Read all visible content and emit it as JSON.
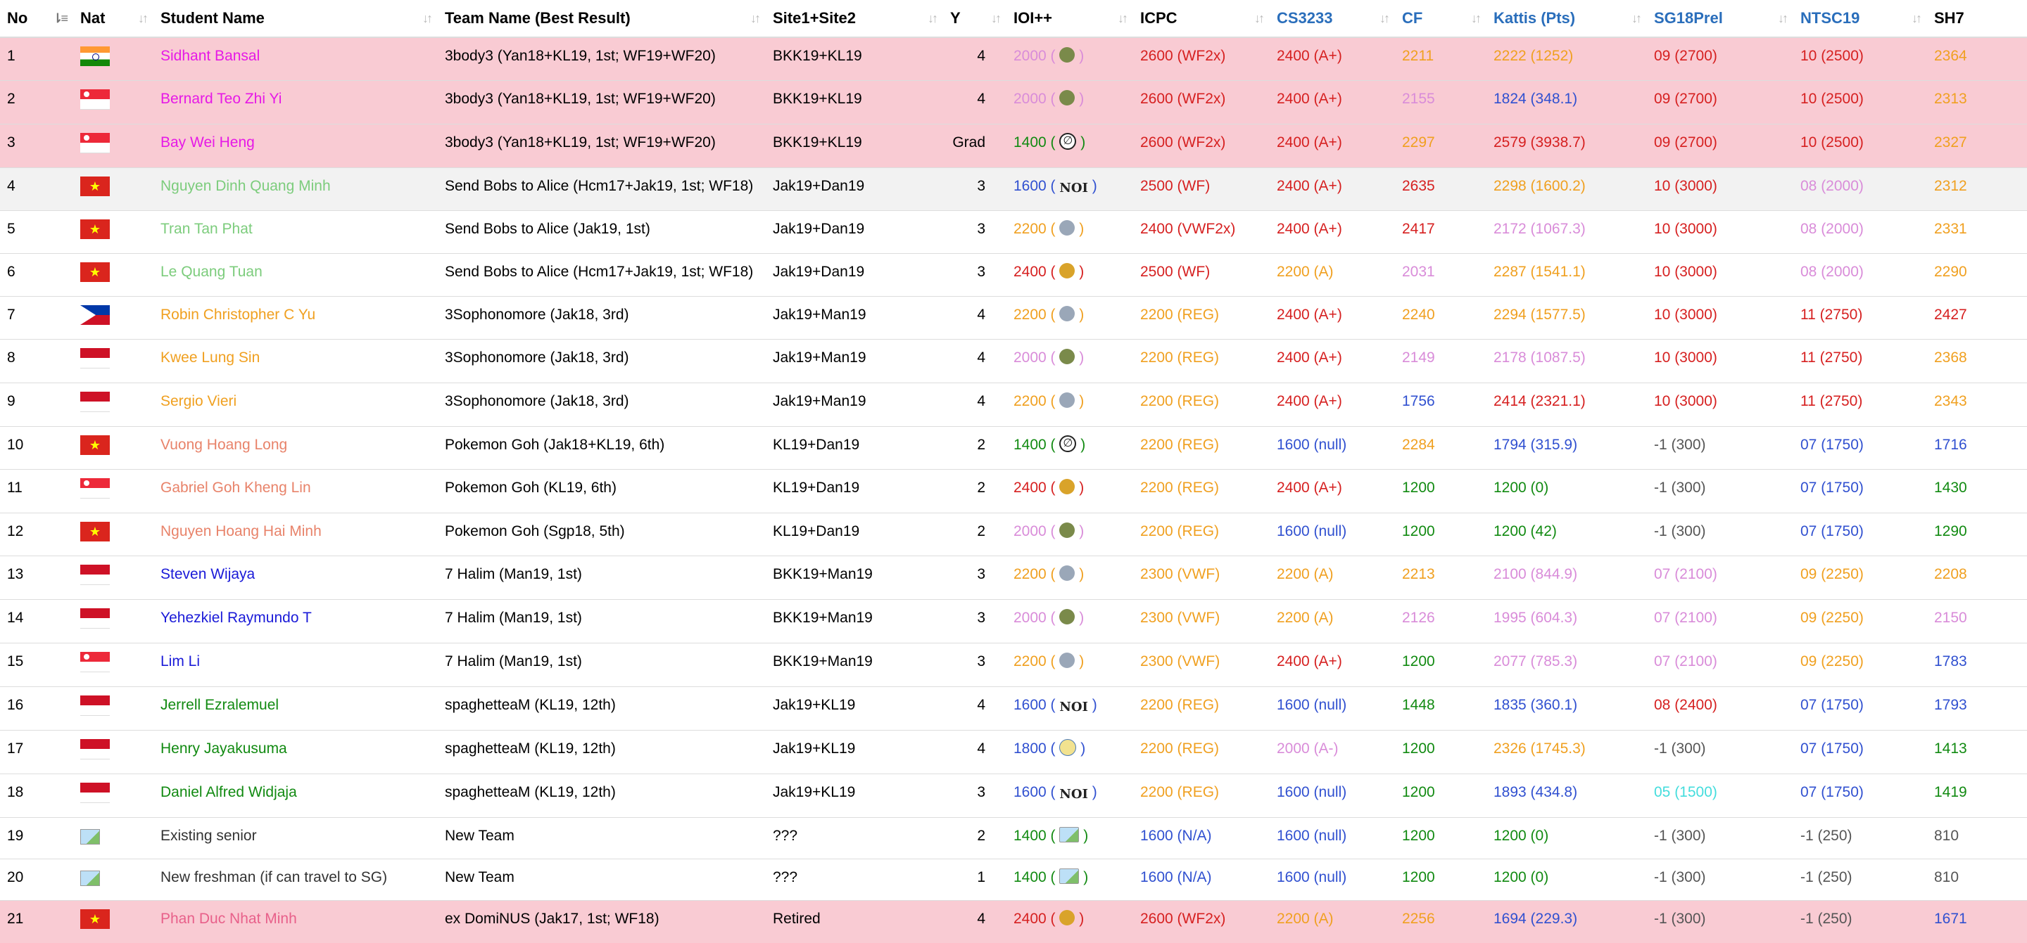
{
  "headers": {
    "no": "No",
    "nat": "Nat",
    "name": "Student Name",
    "team": "Team Name (Best Result)",
    "site": "Site1+Site2",
    "y": "Y",
    "ioi": "IOI++",
    "icpc": "ICPC",
    "cs3233": "CS3233",
    "cf": "CF",
    "kattis": "Kattis (Pts)",
    "sg18": "SG18Prel",
    "ntsc": "NTSC19",
    "sh7": "SH7"
  },
  "header_colors": {
    "cs3233": "#2a6ebb",
    "cf": "#2a6ebb",
    "kattis": "#2a6ebb",
    "sg18": "#2a6ebb",
    "ntsc": "#2a6ebb"
  },
  "rows": [
    {
      "no": "1",
      "flag": "in",
      "flag_icon": "india-flag-icon",
      "name": "Sidhant Bansal",
      "name_color": "#e619e6",
      "team": "3body3 (Yan18+KL19, 1st; WF19+WF20)",
      "site": "BKK19+KL19",
      "y": "4",
      "ioi": "2000",
      "ioi_color": "#d98cd9",
      "medal": "bronze",
      "medal_icon": "bronze-medal-icon",
      "icpc": "2600 (WF2x)",
      "icpc_color": "#d62020",
      "cs": "2400 (A+)",
      "cs_color": "#d62020",
      "cf": "2211",
      "cf_color": "#f0a020",
      "kattis": "2222 (1252)",
      "kattis_color": "#f0a020",
      "sg18": "09 (2700)",
      "sg18_color": "#d62020",
      "ntsc": "10 (2500)",
      "ntsc_color": "#d62020",
      "sh7": "2364",
      "sh7_color": "#f0a020",
      "style": "pink"
    },
    {
      "no": "2",
      "flag": "sg",
      "flag_icon": "singapore-flag-icon",
      "name": "Bernard Teo Zhi Yi",
      "name_color": "#e619e6",
      "team": "3body3 (Yan18+KL19, 1st; WF19+WF20)",
      "site": "BKK19+KL19",
      "y": "4",
      "ioi": "2000",
      "ioi_color": "#d98cd9",
      "medal": "bronze",
      "medal_icon": "bronze-medal-icon",
      "icpc": "2600 (WF2x)",
      "icpc_color": "#d62020",
      "cs": "2400 (A+)",
      "cs_color": "#d62020",
      "cf": "2155",
      "cf_color": "#d98cd9",
      "kattis": "1824 (348.1)",
      "kattis_color": "#3050d0",
      "sg18": "09 (2700)",
      "sg18_color": "#d62020",
      "ntsc": "10 (2500)",
      "ntsc_color": "#d62020",
      "sh7": "2313",
      "sh7_color": "#f0a020",
      "style": "pink"
    },
    {
      "no": "3",
      "flag": "sg",
      "flag_icon": "singapore-flag-icon",
      "name": "Bay Wei Heng",
      "name_color": "#e619e6",
      "team": "3body3 (Yan18+KL19, 1st; WF19+WF20)",
      "site": "BKK19+KL19",
      "y": "Grad",
      "ioi": "1400",
      "ioi_color": "#118a11",
      "medal": "none",
      "medal_icon": "no-medal-icon",
      "icpc": "2600 (WF2x)",
      "icpc_color": "#d62020",
      "cs": "2400 (A+)",
      "cs_color": "#d62020",
      "cf": "2297",
      "cf_color": "#f0a020",
      "kattis": "2579 (3938.7)",
      "kattis_color": "#d62020",
      "sg18": "09 (2700)",
      "sg18_color": "#d62020",
      "ntsc": "10 (2500)",
      "ntsc_color": "#d62020",
      "sh7": "2327",
      "sh7_color": "#f0a020",
      "style": "pink"
    },
    {
      "no": "4",
      "flag": "vn",
      "flag_icon": "vietnam-flag-icon",
      "name": "Nguyen Dinh Quang Minh",
      "name_color": "#7ccc7c",
      "team": "Send Bobs to Alice (Hcm17+Jak19, 1st; WF18)",
      "site": "Jak19+Dan19",
      "y": "3",
      "ioi": "1600",
      "ioi_color": "#3050d0",
      "medal": "noi",
      "medal_icon": "noi-logo-icon",
      "icpc": "2500 (WF)",
      "icpc_color": "#d62020",
      "cs": "2400 (A+)",
      "cs_color": "#d62020",
      "cf": "2635",
      "cf_color": "#d62020",
      "kattis": "2298 (1600.2)",
      "kattis_color": "#f0a020",
      "sg18": "10 (3000)",
      "sg18_color": "#d62020",
      "ntsc": "08 (2000)",
      "ntsc_color": "#d98cd9",
      "sh7": "2312",
      "sh7_color": "#f0a020",
      "style": "grey"
    },
    {
      "no": "5",
      "flag": "vn",
      "flag_icon": "vietnam-flag-icon",
      "name": "Tran Tan Phat",
      "name_color": "#7ccc7c",
      "team": "Send Bobs to Alice (Jak19, 1st)",
      "site": "Jak19+Dan19",
      "y": "3",
      "ioi": "2200",
      "ioi_color": "#f0a020",
      "medal": "silver",
      "medal_icon": "silver-medal-icon",
      "icpc": "2400 (VWF2x)",
      "icpc_color": "#d62020",
      "cs": "2400 (A+)",
      "cs_color": "#d62020",
      "cf": "2417",
      "cf_color": "#d62020",
      "kattis": "2172 (1067.3)",
      "kattis_color": "#d98cd9",
      "sg18": "10 (3000)",
      "sg18_color": "#d62020",
      "ntsc": "08 (2000)",
      "ntsc_color": "#d98cd9",
      "sh7": "2331",
      "sh7_color": "#f0a020",
      "style": ""
    },
    {
      "no": "6",
      "flag": "vn",
      "flag_icon": "vietnam-flag-icon",
      "name": "Le Quang Tuan",
      "name_color": "#7ccc7c",
      "team": "Send Bobs to Alice (Hcm17+Jak19, 1st; WF18)",
      "site": "Jak19+Dan19",
      "y": "3",
      "ioi": "2400",
      "ioi_color": "#d62020",
      "medal": "gold",
      "medal_icon": "gold-medal-icon",
      "icpc": "2500 (WF)",
      "icpc_color": "#d62020",
      "cs": "2200 (A)",
      "cs_color": "#f0a020",
      "cf": "2031",
      "cf_color": "#d98cd9",
      "kattis": "2287 (1541.1)",
      "kattis_color": "#f0a020",
      "sg18": "10 (3000)",
      "sg18_color": "#d62020",
      "ntsc": "08 (2000)",
      "ntsc_color": "#d98cd9",
      "sh7": "2290",
      "sh7_color": "#f0a020",
      "style": ""
    },
    {
      "no": "7",
      "flag": "ph",
      "flag_icon": "philippines-flag-icon",
      "name": "Robin Christopher C Yu",
      "name_color": "#f0a020",
      "team": "3Sophonomore (Jak18, 3rd)",
      "site": "Jak19+Man19",
      "y": "4",
      "ioi": "2200",
      "ioi_color": "#f0a020",
      "medal": "silver",
      "medal_icon": "silver-medal-icon",
      "icpc": "2200 (REG)",
      "icpc_color": "#f0a020",
      "cs": "2400 (A+)",
      "cs_color": "#d62020",
      "cf": "2240",
      "cf_color": "#f0a020",
      "kattis": "2294 (1577.5)",
      "kattis_color": "#f0a020",
      "sg18": "10 (3000)",
      "sg18_color": "#d62020",
      "ntsc": "11 (2750)",
      "ntsc_color": "#d62020",
      "sh7": "2427",
      "sh7_color": "#d62020",
      "style": ""
    },
    {
      "no": "8",
      "flag": "id",
      "flag_icon": "indonesia-flag-icon",
      "name": "Kwee Lung Sin",
      "name_color": "#f0a020",
      "team": "3Sophonomore (Jak18, 3rd)",
      "site": "Jak19+Man19",
      "y": "4",
      "ioi": "2000",
      "ioi_color": "#d98cd9",
      "medal": "bronze",
      "medal_icon": "bronze-medal-icon",
      "icpc": "2200 (REG)",
      "icpc_color": "#f0a020",
      "cs": "2400 (A+)",
      "cs_color": "#d62020",
      "cf": "2149",
      "cf_color": "#d98cd9",
      "kattis": "2178 (1087.5)",
      "kattis_color": "#d98cd9",
      "sg18": "10 (3000)",
      "sg18_color": "#d62020",
      "ntsc": "11 (2750)",
      "ntsc_color": "#d62020",
      "sh7": "2368",
      "sh7_color": "#f0a020",
      "style": ""
    },
    {
      "no": "9",
      "flag": "id",
      "flag_icon": "indonesia-flag-icon",
      "name": "Sergio Vieri",
      "name_color": "#f0a020",
      "team": "3Sophonomore (Jak18, 3rd)",
      "site": "Jak19+Man19",
      "y": "4",
      "ioi": "2200",
      "ioi_color": "#f0a020",
      "medal": "silver",
      "medal_icon": "silver-medal-icon",
      "icpc": "2200 (REG)",
      "icpc_color": "#f0a020",
      "cs": "2400 (A+)",
      "cs_color": "#d62020",
      "cf": "1756",
      "cf_color": "#3050d0",
      "kattis": "2414 (2321.1)",
      "kattis_color": "#d62020",
      "sg18": "10 (3000)",
      "sg18_color": "#d62020",
      "ntsc": "11 (2750)",
      "ntsc_color": "#d62020",
      "sh7": "2343",
      "sh7_color": "#f0a020",
      "style": ""
    },
    {
      "no": "10",
      "flag": "vn",
      "flag_icon": "vietnam-flag-icon",
      "name": "Vuong Hoang Long",
      "name_color": "#e8836a",
      "team": "Pokemon Goh (Jak18+KL19, 6th)",
      "site": "KL19+Dan19",
      "y": "2",
      "ioi": "1400",
      "ioi_color": "#118a11",
      "medal": "none",
      "medal_icon": "no-medal-icon",
      "icpc": "2200 (REG)",
      "icpc_color": "#f0a020",
      "cs": "1600 (null)",
      "cs_color": "#3050d0",
      "cf": "2284",
      "cf_color": "#f0a020",
      "kattis": "1794 (315.9)",
      "kattis_color": "#3050d0",
      "sg18": "-1 (300)",
      "sg18_color": "#555555",
      "ntsc": "07 (1750)",
      "ntsc_color": "#3050d0",
      "sh7": "1716",
      "sh7_color": "#3050d0",
      "style": ""
    },
    {
      "no": "11",
      "flag": "sg",
      "flag_icon": "singapore-flag-icon",
      "name": "Gabriel Goh Kheng Lin",
      "name_color": "#e8836a",
      "team": "Pokemon Goh (KL19, 6th)",
      "site": "KL19+Dan19",
      "y": "2",
      "ioi": "2400",
      "ioi_color": "#d62020",
      "medal": "gold",
      "medal_icon": "gold-medal-icon",
      "icpc": "2200 (REG)",
      "icpc_color": "#f0a020",
      "cs": "2400 (A+)",
      "cs_color": "#d62020",
      "cf": "1200",
      "cf_color": "#118a11",
      "kattis": "1200 (0)",
      "kattis_color": "#118a11",
      "sg18": "-1 (300)",
      "sg18_color": "#555555",
      "ntsc": "07 (1750)",
      "ntsc_color": "#3050d0",
      "sh7": "1430",
      "sh7_color": "#118a11",
      "style": ""
    },
    {
      "no": "12",
      "flag": "vn",
      "flag_icon": "vietnam-flag-icon",
      "name": "Nguyen Hoang Hai Minh",
      "name_color": "#e8836a",
      "team": "Pokemon Goh (Sgp18, 5th)",
      "site": "KL19+Dan19",
      "y": "2",
      "ioi": "2000",
      "ioi_color": "#d98cd9",
      "medal": "bronze",
      "medal_icon": "bronze-medal-icon",
      "icpc": "2200 (REG)",
      "icpc_color": "#f0a020",
      "cs": "1600 (null)",
      "cs_color": "#3050d0",
      "cf": "1200",
      "cf_color": "#118a11",
      "kattis": "1200 (42)",
      "kattis_color": "#118a11",
      "sg18": "-1 (300)",
      "sg18_color": "#555555",
      "ntsc": "07 (1750)",
      "ntsc_color": "#3050d0",
      "sh7": "1290",
      "sh7_color": "#118a11",
      "style": ""
    },
    {
      "no": "13",
      "flag": "id",
      "flag_icon": "indonesia-flag-icon",
      "name": "Steven Wijaya",
      "name_color": "#1a1ad8",
      "team": "7 Halim (Man19, 1st)",
      "site": "BKK19+Man19",
      "y": "3",
      "ioi": "2200",
      "ioi_color": "#f0a020",
      "medal": "silver",
      "medal_icon": "silver-medal-icon",
      "icpc": "2300 (VWF)",
      "icpc_color": "#f0a020",
      "cs": "2200 (A)",
      "cs_color": "#f0a020",
      "cf": "2213",
      "cf_color": "#f0a020",
      "kattis": "2100 (844.9)",
      "kattis_color": "#d98cd9",
      "sg18": "07 (2100)",
      "sg18_color": "#d98cd9",
      "ntsc": "09 (2250)",
      "ntsc_color": "#f0a020",
      "sh7": "2208",
      "sh7_color": "#f0a020",
      "style": ""
    },
    {
      "no": "14",
      "flag": "id",
      "flag_icon": "indonesia-flag-icon",
      "name": "Yehezkiel Raymundo T",
      "name_color": "#1a1ad8",
      "team": "7 Halim (Man19, 1st)",
      "site": "BKK19+Man19",
      "y": "3",
      "ioi": "2000",
      "ioi_color": "#d98cd9",
      "medal": "bronze",
      "medal_icon": "bronze-medal-icon",
      "icpc": "2300 (VWF)",
      "icpc_color": "#f0a020",
      "cs": "2200 (A)",
      "cs_color": "#f0a020",
      "cf": "2126",
      "cf_color": "#d98cd9",
      "kattis": "1995 (604.3)",
      "kattis_color": "#d98cd9",
      "sg18": "07 (2100)",
      "sg18_color": "#d98cd9",
      "ntsc": "09 (2250)",
      "ntsc_color": "#f0a020",
      "sh7": "2150",
      "sh7_color": "#d98cd9",
      "style": ""
    },
    {
      "no": "15",
      "flag": "sg",
      "flag_icon": "singapore-flag-icon",
      "name": "Lim Li",
      "name_color": "#1a1ad8",
      "team": "7 Halim (Man19, 1st)",
      "site": "BKK19+Man19",
      "y": "3",
      "ioi": "2200",
      "ioi_color": "#f0a020",
      "medal": "silver",
      "medal_icon": "silver-medal-icon",
      "icpc": "2300 (VWF)",
      "icpc_color": "#f0a020",
      "cs": "2400 (A+)",
      "cs_color": "#d62020",
      "cf": "1200",
      "cf_color": "#118a11",
      "kattis": "2077 (785.3)",
      "kattis_color": "#d98cd9",
      "sg18": "07 (2100)",
      "sg18_color": "#d98cd9",
      "ntsc": "09 (2250)",
      "ntsc_color": "#f0a020",
      "sh7": "1783",
      "sh7_color": "#3050d0",
      "style": ""
    },
    {
      "no": "16",
      "flag": "id",
      "flag_icon": "indonesia-flag-icon",
      "name": "Jerrell Ezralemuel",
      "name_color": "#118a11",
      "team": "spaghetteaM (KL19, 12th)",
      "site": "Jak19+KL19",
      "y": "4",
      "ioi": "1600",
      "ioi_color": "#3050d0",
      "medal": "noi",
      "medal_icon": "noi-logo-icon",
      "icpc": "2200 (REG)",
      "icpc_color": "#f0a020",
      "cs": "1600 (null)",
      "cs_color": "#3050d0",
      "cf": "1448",
      "cf_color": "#118a11",
      "kattis": "1835 (360.1)",
      "kattis_color": "#3050d0",
      "sg18": "08 (2400)",
      "sg18_color": "#d62020",
      "ntsc": "07 (1750)",
      "ntsc_color": "#3050d0",
      "sh7": "1793",
      "sh7_color": "#3050d0",
      "style": ""
    },
    {
      "no": "17",
      "flag": "id",
      "flag_icon": "indonesia-flag-icon",
      "name": "Henry Jayakusuma",
      "name_color": "#118a11",
      "team": "spaghetteaM (KL19, 12th)",
      "site": "Jak19+KL19",
      "y": "4",
      "ioi": "1800",
      "ioi_color": "#3050d0",
      "medal": "cert",
      "medal_icon": "certificate-icon",
      "icpc": "2200 (REG)",
      "icpc_color": "#f0a020",
      "cs": "2000 (A-)",
      "cs_color": "#d98cd9",
      "cf": "1200",
      "cf_color": "#118a11",
      "kattis": "2326 (1745.3)",
      "kattis_color": "#f0a020",
      "sg18": "-1 (300)",
      "sg18_color": "#555555",
      "ntsc": "07 (1750)",
      "ntsc_color": "#3050d0",
      "sh7": "1413",
      "sh7_color": "#118a11",
      "style": ""
    },
    {
      "no": "18",
      "flag": "id",
      "flag_icon": "indonesia-flag-icon",
      "name": "Daniel Alfred Widjaja",
      "name_color": "#118a11",
      "team": "spaghetteaM (KL19, 12th)",
      "site": "Jak19+KL19",
      "y": "3",
      "ioi": "1600",
      "ioi_color": "#3050d0",
      "medal": "noi",
      "medal_icon": "noi-logo-icon",
      "icpc": "2200 (REG)",
      "icpc_color": "#f0a020",
      "cs": "1600 (null)",
      "cs_color": "#3050d0",
      "cf": "1200",
      "cf_color": "#118a11",
      "kattis": "1893 (434.8)",
      "kattis_color": "#3050d0",
      "sg18": "05 (1500)",
      "sg18_color": "#44dddd",
      "ntsc": "07 (1750)",
      "ntsc_color": "#3050d0",
      "sh7": "1419",
      "sh7_color": "#118a11",
      "style": ""
    },
    {
      "no": "19",
      "flag": "none",
      "flag_icon": "broken-image-icon",
      "name": "Existing senior",
      "name_color": "#333333",
      "team": "New Team",
      "site": "???",
      "y": "2",
      "ioi": "1400",
      "ioi_color": "#118a11",
      "medal": "pic",
      "medal_icon": "broken-image-icon",
      "icpc": "1600 (N/A)",
      "icpc_color": "#3050d0",
      "cs": "1600 (null)",
      "cs_color": "#3050d0",
      "cf": "1200",
      "cf_color": "#118a11",
      "kattis": "1200 (0)",
      "kattis_color": "#118a11",
      "sg18": "-1 (300)",
      "sg18_color": "#555555",
      "ntsc": "-1 (250)",
      "ntsc_color": "#555555",
      "sh7": "810",
      "sh7_color": "#555555",
      "style": ""
    },
    {
      "no": "20",
      "flag": "none",
      "flag_icon": "broken-image-icon",
      "name": "New freshman (if can travel to SG)",
      "name_color": "#333333",
      "team": "New Team",
      "site": "???",
      "y": "1",
      "ioi": "1400",
      "ioi_color": "#118a11",
      "medal": "pic",
      "medal_icon": "broken-image-icon",
      "icpc": "1600 (N/A)",
      "icpc_color": "#3050d0",
      "cs": "1600 (null)",
      "cs_color": "#3050d0",
      "cf": "1200",
      "cf_color": "#118a11",
      "kattis": "1200 (0)",
      "kattis_color": "#118a11",
      "sg18": "-1 (300)",
      "sg18_color": "#555555",
      "ntsc": "-1 (250)",
      "ntsc_color": "#555555",
      "sh7": "810",
      "sh7_color": "#555555",
      "style": ""
    },
    {
      "no": "21",
      "flag": "vn",
      "flag_icon": "vietnam-flag-icon",
      "name": "Phan Duc Nhat Minh",
      "name_color": "#e8608a",
      "team": "ex DomiNUS (Jak17, 1st; WF18)",
      "site": "Retired",
      "y": "4",
      "ioi": "2400",
      "ioi_color": "#d62020",
      "medal": "gold",
      "medal_icon": "gold-medal-icon",
      "icpc": "2600 (WF2x)",
      "icpc_color": "#d62020",
      "cs": "2200 (A)",
      "cs_color": "#f0a020",
      "cf": "2256",
      "cf_color": "#f0a020",
      "kattis": "1694 (229.3)",
      "kattis_color": "#3050d0",
      "sg18": "-1 (300)",
      "sg18_color": "#555555",
      "ntsc": "-1 (250)",
      "ntsc_color": "#555555",
      "sh7": "1671",
      "sh7_color": "#3050d0",
      "style": "pink"
    }
  ]
}
